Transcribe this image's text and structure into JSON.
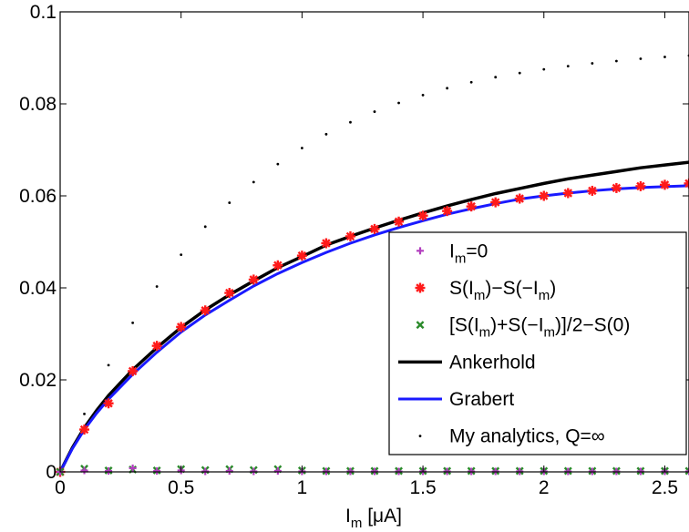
{
  "chart_data": {
    "type": "line",
    "title": "",
    "xlabel": {
      "main": "I",
      "sub": "m",
      "rest": " [μA]"
    },
    "ylabel": "",
    "xlim": [
      0,
      2.6
    ],
    "ylim": [
      0,
      0.1
    ],
    "xticks": [
      0,
      0.5,
      1,
      1.5,
      2,
      2.5
    ],
    "xtick_labels": [
      "0",
      "0.5",
      "1",
      "1.5",
      "2",
      "2.5"
    ],
    "yticks": [
      0,
      0.02,
      0.04,
      0.06,
      0.08,
      0.1
    ],
    "ytick_labels": [
      "0",
      "0.02",
      "0.04",
      "0.06",
      "0.08",
      "0.1"
    ],
    "grid": false,
    "legend_placement": "lower-right",
    "series": [
      {
        "key": "im0",
        "legend": [
          {
            "t": "I"
          },
          {
            "t": "m",
            "sub": true
          },
          {
            "t": "=0"
          }
        ],
        "kind": "marker",
        "marker": "plus",
        "color": "#b23fbf",
        "x": [
          0,
          0.1,
          0.2,
          0.3,
          0.4,
          0.5,
          0.6,
          0.7,
          0.8,
          0.9,
          1.0,
          1.1,
          1.2,
          1.3,
          1.4,
          1.5,
          1.6,
          1.7,
          1.8,
          1.9,
          2.0,
          2.1,
          2.2,
          2.3,
          2.4,
          2.5,
          2.6
        ],
        "y": [
          0,
          0.0003,
          0.0002,
          0.0008,
          0.0002,
          0.0003,
          0.0001,
          0.0002,
          0.0001,
          0.0002,
          0.0001,
          0.0001,
          0.0001,
          0.0001,
          0.0001,
          0.0001,
          0.0001,
          0.0001,
          0.0001,
          0.0001,
          0.0001,
          0.0001,
          0.0001,
          0.0001,
          0.0001,
          0.0001,
          0.0001
        ]
      },
      {
        "key": "diff",
        "legend": [
          {
            "t": "S(I"
          },
          {
            "t": "m",
            "sub": true
          },
          {
            "t": ")−S(−I"
          },
          {
            "t": "m",
            "sub": true
          },
          {
            "t": ")"
          }
        ],
        "kind": "marker",
        "marker": "asterisk",
        "color": "#ff1a1a",
        "x": [
          0,
          0.1,
          0.2,
          0.3,
          0.4,
          0.5,
          0.6,
          0.7,
          0.8,
          0.9,
          1.0,
          1.1,
          1.2,
          1.3,
          1.4,
          1.5,
          1.6,
          1.7,
          1.8,
          1.9,
          2.0,
          2.1,
          2.2,
          2.3,
          2.4,
          2.5,
          2.6
        ],
        "y": [
          0,
          0.0092,
          0.0149,
          0.0219,
          0.0274,
          0.0315,
          0.0351,
          0.0389,
          0.0418,
          0.0449,
          0.047,
          0.0497,
          0.0512,
          0.0528,
          0.0544,
          0.0557,
          0.0567,
          0.0577,
          0.0586,
          0.0594,
          0.06,
          0.0606,
          0.0611,
          0.0617,
          0.0621,
          0.0624,
          0.0627
        ]
      },
      {
        "key": "avg",
        "legend": [
          {
            "t": "[S(I"
          },
          {
            "t": "m",
            "sub": true
          },
          {
            "t": ")+S(−I"
          },
          {
            "t": "m",
            "sub": true
          },
          {
            "t": ")]/2−S(0)"
          }
        ],
        "kind": "marker",
        "marker": "cross",
        "color": "#2a8a2a",
        "x": [
          0,
          0.1,
          0.2,
          0.3,
          0.4,
          0.5,
          0.6,
          0.7,
          0.8,
          0.9,
          1.0,
          1.1,
          1.2,
          1.3,
          1.4,
          1.5,
          1.6,
          1.7,
          1.8,
          1.9,
          2.0,
          2.1,
          2.2,
          2.3,
          2.4,
          2.5,
          2.6
        ],
        "y": [
          0,
          0.0007,
          0.0003,
          0.0005,
          0.0003,
          0.0006,
          0.0004,
          0.0006,
          0.0004,
          0.0006,
          0.0003,
          0.0002,
          0.0002,
          0.0002,
          0.0002,
          0.0002,
          0.0002,
          0.0002,
          0.0002,
          0.0002,
          0.0002,
          0.0002,
          0.0002,
          0.0002,
          0.0002,
          0.0002,
          0.0002
        ]
      },
      {
        "key": "ankerhold",
        "legend": [
          {
            "t": "Ankerhold"
          }
        ],
        "kind": "line",
        "color": "#000000",
        "width": 3.5,
        "x": [
          0,
          0.05,
          0.1,
          0.15,
          0.2,
          0.3,
          0.4,
          0.5,
          0.6,
          0.7,
          0.8,
          0.9,
          1.0,
          1.1,
          1.2,
          1.3,
          1.4,
          1.5,
          1.6,
          1.7,
          1.8,
          1.9,
          2.0,
          2.1,
          2.2,
          2.3,
          2.4,
          2.5,
          2.6
        ],
        "y": [
          0,
          0.0052,
          0.0096,
          0.0133,
          0.0166,
          0.0222,
          0.027,
          0.0314,
          0.0352,
          0.0385,
          0.0415,
          0.0444,
          0.0468,
          0.0493,
          0.0512,
          0.053,
          0.0547,
          0.0563,
          0.0578,
          0.0592,
          0.0605,
          0.0616,
          0.0627,
          0.0637,
          0.0645,
          0.0653,
          0.0661,
          0.0667,
          0.0673
        ]
      },
      {
        "key": "grabert",
        "legend": [
          {
            "t": "Grabert"
          }
        ],
        "kind": "line",
        "color": "#1a1aff",
        "width": 3,
        "x": [
          0,
          0.05,
          0.1,
          0.15,
          0.2,
          0.3,
          0.4,
          0.5,
          0.6,
          0.7,
          0.8,
          0.9,
          1.0,
          1.1,
          1.2,
          1.3,
          1.4,
          1.5,
          1.6,
          1.7,
          1.8,
          1.9,
          2.0,
          2.1,
          2.2,
          2.3,
          2.4,
          2.5,
          2.6
        ],
        "y": [
          0,
          0.005,
          0.0092,
          0.0127,
          0.0158,
          0.0212,
          0.026,
          0.0304,
          0.0341,
          0.0373,
          0.0404,
          0.0431,
          0.0455,
          0.0477,
          0.0497,
          0.0515,
          0.0531,
          0.0546,
          0.056,
          0.0572,
          0.0583,
          0.0593,
          0.06,
          0.0606,
          0.0611,
          0.0615,
          0.0618,
          0.062,
          0.0622
        ]
      },
      {
        "key": "analytics",
        "legend": [
          {
            "t": "My analytics, Q=∞"
          }
        ],
        "kind": "marker",
        "marker": "dot",
        "color": "#000000",
        "x": [
          0,
          0.1,
          0.2,
          0.3,
          0.4,
          0.5,
          0.6,
          0.7,
          0.8,
          0.9,
          1.0,
          1.1,
          1.2,
          1.3,
          1.4,
          1.5,
          1.6,
          1.7,
          1.8,
          1.9,
          2.0,
          2.1,
          2.2,
          2.3,
          2.4,
          2.5,
          2.6
        ],
        "y": [
          0,
          0.0126,
          0.0232,
          0.0324,
          0.0403,
          0.0472,
          0.0533,
          0.0585,
          0.063,
          0.0669,
          0.0704,
          0.0734,
          0.076,
          0.0783,
          0.0802,
          0.0819,
          0.0834,
          0.0847,
          0.0858,
          0.0867,
          0.0875,
          0.0882,
          0.0888,
          0.0893,
          0.0898,
          0.0902,
          0.0905
        ]
      }
    ]
  }
}
